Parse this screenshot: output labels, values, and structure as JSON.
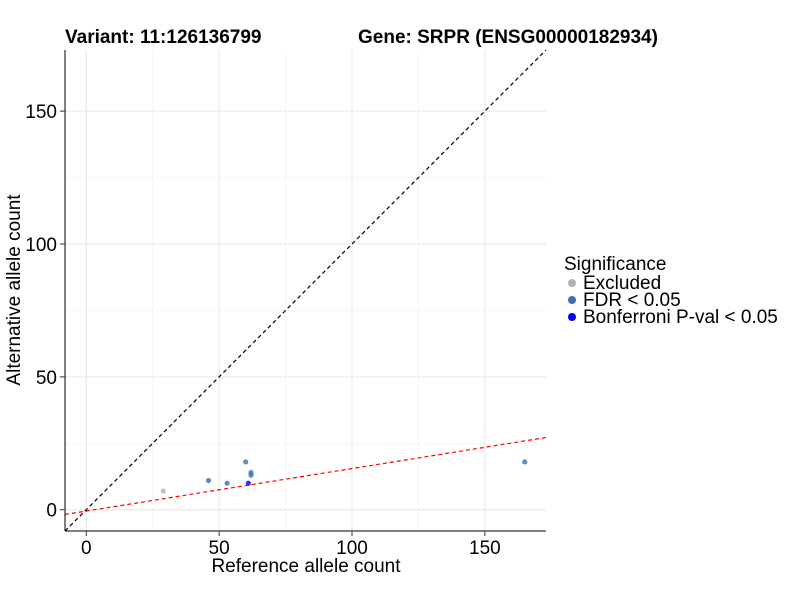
{
  "chart_data": {
    "type": "scatter",
    "title_left": "Variant: 11:126136799",
    "title_right": "Gene: SRPR (ENSG00000182934)",
    "xlabel": "Reference allele count",
    "ylabel": "Alternative allele count",
    "xlim": [
      -8,
      173
    ],
    "ylim": [
      -8,
      173
    ],
    "xticks": [
      0,
      50,
      100,
      150
    ],
    "yticks": [
      0,
      50,
      100,
      150
    ],
    "grid": true,
    "legend": {
      "title": "Significance",
      "position": "right",
      "entries": [
        {
          "label": "Excluded",
          "color": "#b3b3b3"
        },
        {
          "label": "FDR < 0.05",
          "color": "#3a6fb0"
        },
        {
          "label": "Bonferroni P-val < 0.05",
          "color": "#0000ff"
        }
      ]
    },
    "reference_lines": [
      {
        "name": "identity",
        "color": "#000000",
        "style": "dashed",
        "slope": 1,
        "intercept": 0
      },
      {
        "name": "fit",
        "color": "#ff0000",
        "style": "dashed",
        "slope": 0.16,
        "intercept": -0.5
      }
    ],
    "series": [
      {
        "name": "Excluded",
        "color": "#b3b3b3",
        "points": [
          [
            29,
            7
          ]
        ]
      },
      {
        "name": "FDR < 0.05",
        "color": "#3a6fb0",
        "points": [
          [
            46,
            11
          ],
          [
            53,
            10
          ],
          [
            60,
            18
          ],
          [
            62,
            13
          ],
          [
            62,
            14
          ],
          [
            165,
            18
          ]
        ]
      },
      {
        "name": "Bonferroni P-val < 0.05",
        "color": "#0000ff",
        "points": [
          [
            61,
            10
          ]
        ]
      }
    ]
  }
}
